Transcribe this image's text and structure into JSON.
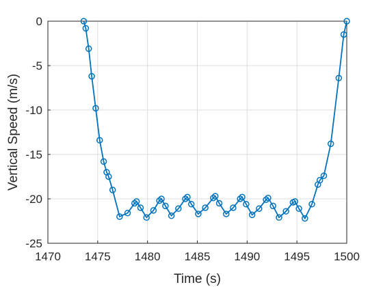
{
  "chart_data": {
    "type": "line",
    "xlabel": "Time (s)",
    "ylabel": "Vertical Speed (m/s)",
    "xlim": [
      1470,
      1500
    ],
    "ylim": [
      -25,
      0
    ],
    "xticks": [
      1470,
      1475,
      1480,
      1485,
      1490,
      1495,
      1500
    ],
    "yticks": [
      0,
      -5,
      -10,
      -15,
      -20,
      -25
    ],
    "grid": true,
    "marker": "circle",
    "colors": {
      "series": "#0072BD",
      "axis": "#262626",
      "grid": "#dcdcdc"
    },
    "series": [
      {
        "x": [
          1473.6,
          1473.8,
          1474.1,
          1474.4,
          1474.8,
          1475.2,
          1475.6,
          1475.9,
          1476.1,
          1476.5,
          1477.2,
          1478.0,
          1478.7,
          1478.9,
          1479.3,
          1479.9,
          1480.6,
          1481.2,
          1481.4,
          1481.8,
          1482.4,
          1483.1,
          1483.8,
          1484.0,
          1484.4,
          1485.1,
          1485.8,
          1486.6,
          1486.8,
          1487.2,
          1487.9,
          1488.6,
          1489.3,
          1489.5,
          1489.9,
          1490.5,
          1491.2,
          1491.9,
          1492.1,
          1492.6,
          1493.2,
          1493.9,
          1494.6,
          1494.8,
          1495.2,
          1495.8,
          1496.5,
          1497.1,
          1497.3,
          1497.7,
          1498.4,
          1499.2,
          1499.7,
          1500.0
        ],
        "y": [
          0,
          -0.8,
          -3.1,
          -6.2,
          -9.8,
          -13.4,
          -15.8,
          -17.0,
          -17.5,
          -19.0,
          -22.0,
          -21.6,
          -20.5,
          -20.3,
          -21.0,
          -22.1,
          -21.3,
          -20.2,
          -20.0,
          -20.8,
          -21.9,
          -21.1,
          -20.0,
          -19.8,
          -20.6,
          -21.7,
          -21.0,
          -19.9,
          -19.7,
          -20.5,
          -21.7,
          -21.0,
          -20.0,
          -19.8,
          -20.6,
          -21.8,
          -21.1,
          -20.1,
          -19.9,
          -20.8,
          -22.1,
          -21.4,
          -20.4,
          -20.3,
          -21.1,
          -22.2,
          -20.6,
          -18.4,
          -17.9,
          -17.4,
          -13.8,
          -6.4,
          -1.5,
          0
        ]
      }
    ]
  }
}
